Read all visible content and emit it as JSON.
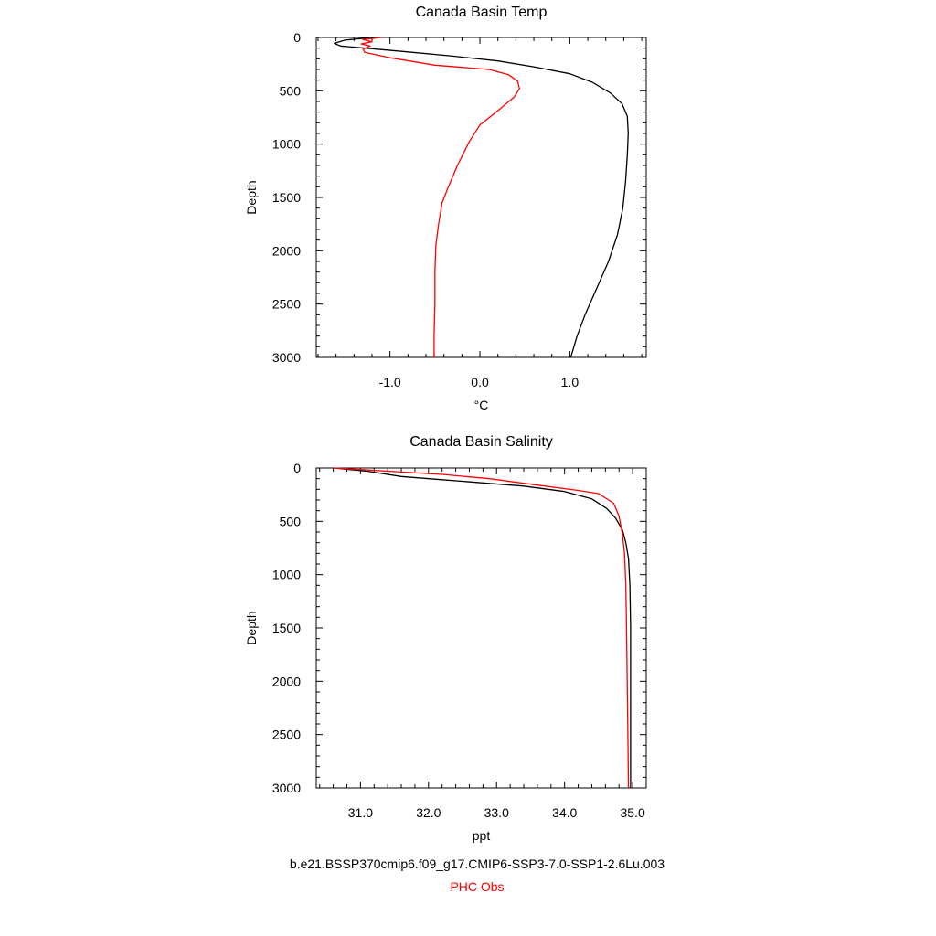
{
  "chart_data": [
    {
      "type": "line",
      "title": "Canada Basin Temp",
      "xlabel": "°C",
      "ylabel": "Depth",
      "xlim": [
        -1.82,
        1.85
      ],
      "ylim": [
        3000,
        0
      ],
      "xticks": [
        -1.0,
        0.0,
        1.0
      ],
      "xtick_labels": [
        "-1.0",
        "0.0",
        "1.0"
      ],
      "yticks": [
        0,
        500,
        1000,
        1500,
        2000,
        2500,
        3000
      ],
      "ytick_labels": [
        "0",
        "500",
        "1000",
        "1500",
        "2000",
        "2500",
        "3000"
      ],
      "series": [
        {
          "name": "b.e21.BSSP370cmip6.f09_g17.CMIP6-SSP3-7.0-SSP1-2.6Lu.003",
          "color": "#000000",
          "points": [
            [
              -1.2,
              0
            ],
            [
              -1.5,
              25
            ],
            [
              -1.62,
              55
            ],
            [
              -1.55,
              80
            ],
            [
              -1.2,
              105
            ],
            [
              -0.8,
              135
            ],
            [
              -0.3,
              175
            ],
            [
              0.2,
              220
            ],
            [
              0.6,
              275
            ],
            [
              1.0,
              340
            ],
            [
              1.25,
              420
            ],
            [
              1.45,
              520
            ],
            [
              1.58,
              620
            ],
            [
              1.64,
              740
            ],
            [
              1.65,
              900
            ],
            [
              1.64,
              1100
            ],
            [
              1.62,
              1350
            ],
            [
              1.59,
              1600
            ],
            [
              1.53,
              1850
            ],
            [
              1.43,
              2100
            ],
            [
              1.3,
              2350
            ],
            [
              1.17,
              2600
            ],
            [
              1.08,
              2800
            ],
            [
              1.01,
              3000
            ]
          ]
        },
        {
          "name": "PHC Obs",
          "color": "#ff0000",
          "points": [
            [
              -1.1,
              0
            ],
            [
              -1.3,
              20
            ],
            [
              -1.2,
              40
            ],
            [
              -1.32,
              60
            ],
            [
              -1.22,
              80
            ],
            [
              -1.3,
              110
            ],
            [
              -1.28,
              140
            ],
            [
              -1.0,
              190
            ],
            [
              -0.5,
              260
            ],
            [
              0.1,
              300
            ],
            [
              0.32,
              350
            ],
            [
              0.42,
              410
            ],
            [
              0.44,
              480
            ],
            [
              0.38,
              560
            ],
            [
              0.18,
              700
            ],
            [
              0.0,
              820
            ],
            [
              -0.12,
              980
            ],
            [
              -0.25,
              1200
            ],
            [
              -0.35,
              1400
            ],
            [
              -0.42,
              1550
            ],
            [
              -0.46,
              1750
            ],
            [
              -0.49,
              1950
            ],
            [
              -0.5,
              2200
            ],
            [
              -0.5,
              2500
            ],
            [
              -0.51,
              2800
            ],
            [
              -0.51,
              3000
            ]
          ]
        }
      ]
    },
    {
      "type": "line",
      "title": "Canada Basin Salinity",
      "xlabel": "ppt",
      "ylabel": "Depth",
      "xlim": [
        30.35,
        35.2
      ],
      "ylim": [
        3000,
        0
      ],
      "xticks": [
        31.0,
        32.0,
        33.0,
        34.0,
        35.0
      ],
      "xtick_labels": [
        "31.0",
        "32.0",
        "33.0",
        "34.0",
        "35.0"
      ],
      "yticks": [
        0,
        500,
        1000,
        1500,
        2000,
        2500,
        3000
      ],
      "ytick_labels": [
        "0",
        "500",
        "1000",
        "1500",
        "2000",
        "2500",
        "3000"
      ],
      "series": [
        {
          "name": "b.e21.BSSP370cmip6.f09_g17.CMIP6-SSP3-7.0-SSP1-2.6Lu.003",
          "color": "#000000",
          "points": [
            [
              30.6,
              0
            ],
            [
              31.1,
              30
            ],
            [
              31.6,
              80
            ],
            [
              32.2,
              110
            ],
            [
              32.8,
              140
            ],
            [
              33.4,
              170
            ],
            [
              34.0,
              220
            ],
            [
              34.4,
              290
            ],
            [
              34.62,
              380
            ],
            [
              34.75,
              470
            ],
            [
              34.85,
              580
            ],
            [
              34.9,
              700
            ],
            [
              34.94,
              850
            ],
            [
              34.96,
              1100
            ],
            [
              34.97,
              1500
            ],
            [
              34.97,
              2000
            ],
            [
              34.97,
              3000
            ]
          ]
        },
        {
          "name": "PHC Obs",
          "color": "#ff0000",
          "points": [
            [
              30.6,
              0
            ],
            [
              31.4,
              30
            ],
            [
              32.2,
              60
            ],
            [
              32.9,
              100
            ],
            [
              33.6,
              160
            ],
            [
              34.2,
              210
            ],
            [
              34.5,
              240
            ],
            [
              34.72,
              330
            ],
            [
              34.8,
              450
            ],
            [
              34.85,
              620
            ],
            [
              34.88,
              800
            ],
            [
              34.9,
              1100
            ],
            [
              34.91,
              1500
            ],
            [
              34.92,
              2000
            ],
            [
              34.93,
              2500
            ],
            [
              34.94,
              3000
            ]
          ]
        }
      ]
    }
  ],
  "legend": {
    "model_label": "b.e21.BSSP370cmip6.f09_g17.CMIP6-SSP3-7.0-SSP1-2.6Lu.003",
    "obs_label": "PHC Obs",
    "model_color": "#000000",
    "obs_color": "#ff0000"
  }
}
